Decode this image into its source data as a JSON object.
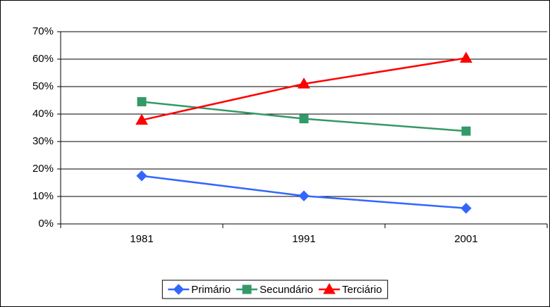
{
  "chart_data": {
    "type": "line",
    "categories": [
      "1981",
      "1991",
      "2001"
    ],
    "series": [
      {
        "name": "Primário",
        "color": "#3366ff",
        "marker": "diamond",
        "values": [
          17.5,
          10.2,
          5.7
        ]
      },
      {
        "name": "Secundário",
        "color": "#339966",
        "marker": "square",
        "values": [
          44.5,
          38.3,
          33.8
        ]
      },
      {
        "name": "Terciário",
        "color": "#ff0000",
        "marker": "triangle",
        "values": [
          37.8,
          51.0,
          60.4
        ]
      }
    ],
    "ylim": [
      0,
      70
    ],
    "yticks": [
      {
        "value": 0,
        "label": "0%"
      },
      {
        "value": 10,
        "label": "10%"
      },
      {
        "value": 20,
        "label": "20%"
      },
      {
        "value": 30,
        "label": "30%"
      },
      {
        "value": 40,
        "label": "40%"
      },
      {
        "value": 50,
        "label": "50%"
      },
      {
        "value": 60,
        "label": "60%"
      },
      {
        "value": 70,
        "label": "70%"
      }
    ],
    "grid": true,
    "legend": "bottom"
  }
}
